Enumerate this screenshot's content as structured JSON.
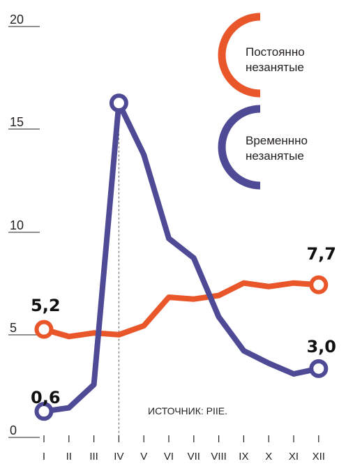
{
  "chart_data": {
    "type": "line",
    "categories": [
      "I",
      "II",
      "III",
      "IV",
      "V",
      "VI",
      "VII",
      "VIII",
      "IX",
      "X",
      "XI",
      "XII"
    ],
    "series": [
      {
        "name": "Постоянно незанятые",
        "color": "#e8562a",
        "values": [
          5.2,
          4.8,
          5.0,
          4.9,
          5.4,
          7.0,
          6.9,
          7.1,
          7.8,
          7.6,
          7.8,
          7.7
        ]
      },
      {
        "name": "Временнно незанятые",
        "color": "#4f4a96",
        "values": [
          0.6,
          0.8,
          2.1,
          17.9,
          15.0,
          10.3,
          9.2,
          5.9,
          4.0,
          3.3,
          2.7,
          3.0
        ]
      }
    ],
    "ylim": [
      0,
      20
    ],
    "yticks": [
      "0",
      "5",
      "10",
      "15",
      "20"
    ],
    "data_labels": [
      {
        "text": "5,2",
        "series": 0,
        "index": 0
      },
      {
        "text": "0,6",
        "series": 1,
        "index": 0
      },
      {
        "text": "7,7",
        "series": 0,
        "index": 11
      },
      {
        "text": "3,0",
        "series": 1,
        "index": 11
      }
    ],
    "source": "ИСТОЧНИК: PIIE.",
    "reference_line_category": "IV",
    "legend_position": "top-right"
  }
}
